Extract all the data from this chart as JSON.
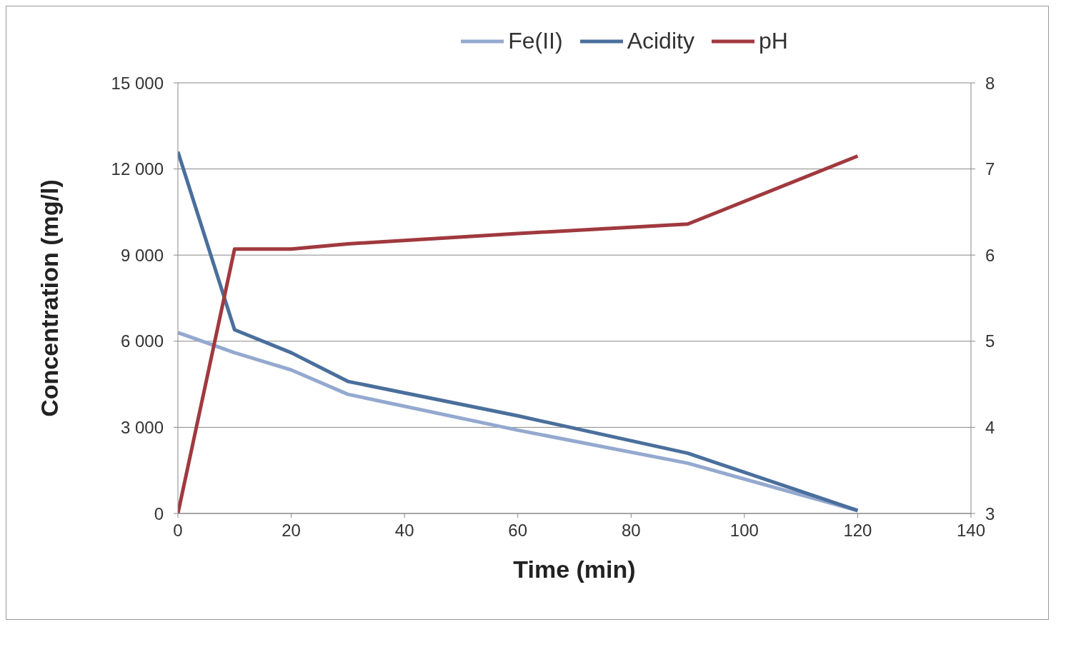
{
  "chart_data": {
    "type": "line",
    "xlabel": "Time (min)",
    "ylabel": "Concentration  (mg/l)",
    "x": [
      0,
      10,
      20,
      30,
      60,
      90,
      120
    ],
    "xlim": [
      0,
      140
    ],
    "xticks": [
      0,
      20,
      40,
      60,
      80,
      100,
      120,
      140
    ],
    "ylim": [
      0,
      15000
    ],
    "yticks": [
      {
        "value": 0,
        "label": "0"
      },
      {
        "value": 3000,
        "label": "3 000"
      },
      {
        "value": 6000,
        "label": "6 000"
      },
      {
        "value": 9000,
        "label": "9 000"
      },
      {
        "value": 12000,
        "label": "12 000"
      },
      {
        "value": 15000,
        "label": "15 000"
      }
    ],
    "y2lim": [
      3,
      8
    ],
    "y2ticks": [
      3,
      4,
      5,
      6,
      7,
      8
    ],
    "grid": "y",
    "legend": "top",
    "marker": "none",
    "line_style": "solid",
    "series": [
      {
        "name": "Fe(II)",
        "color": "#94a9cf",
        "values": [
          6300,
          5600,
          5000,
          4150,
          2900,
          1750,
          100
        ]
      },
      {
        "name": "Acidity",
        "color": "#4a6f9c",
        "values": [
          12600,
          6400,
          5600,
          4600,
          3400,
          2100,
          100
        ]
      },
      {
        "name": "pH",
        "color": "#a0393f",
        "axis": "y2",
        "values": [
          3.0,
          6.07,
          6.07,
          6.13,
          6.25,
          6.36,
          7.15
        ]
      }
    ]
  }
}
